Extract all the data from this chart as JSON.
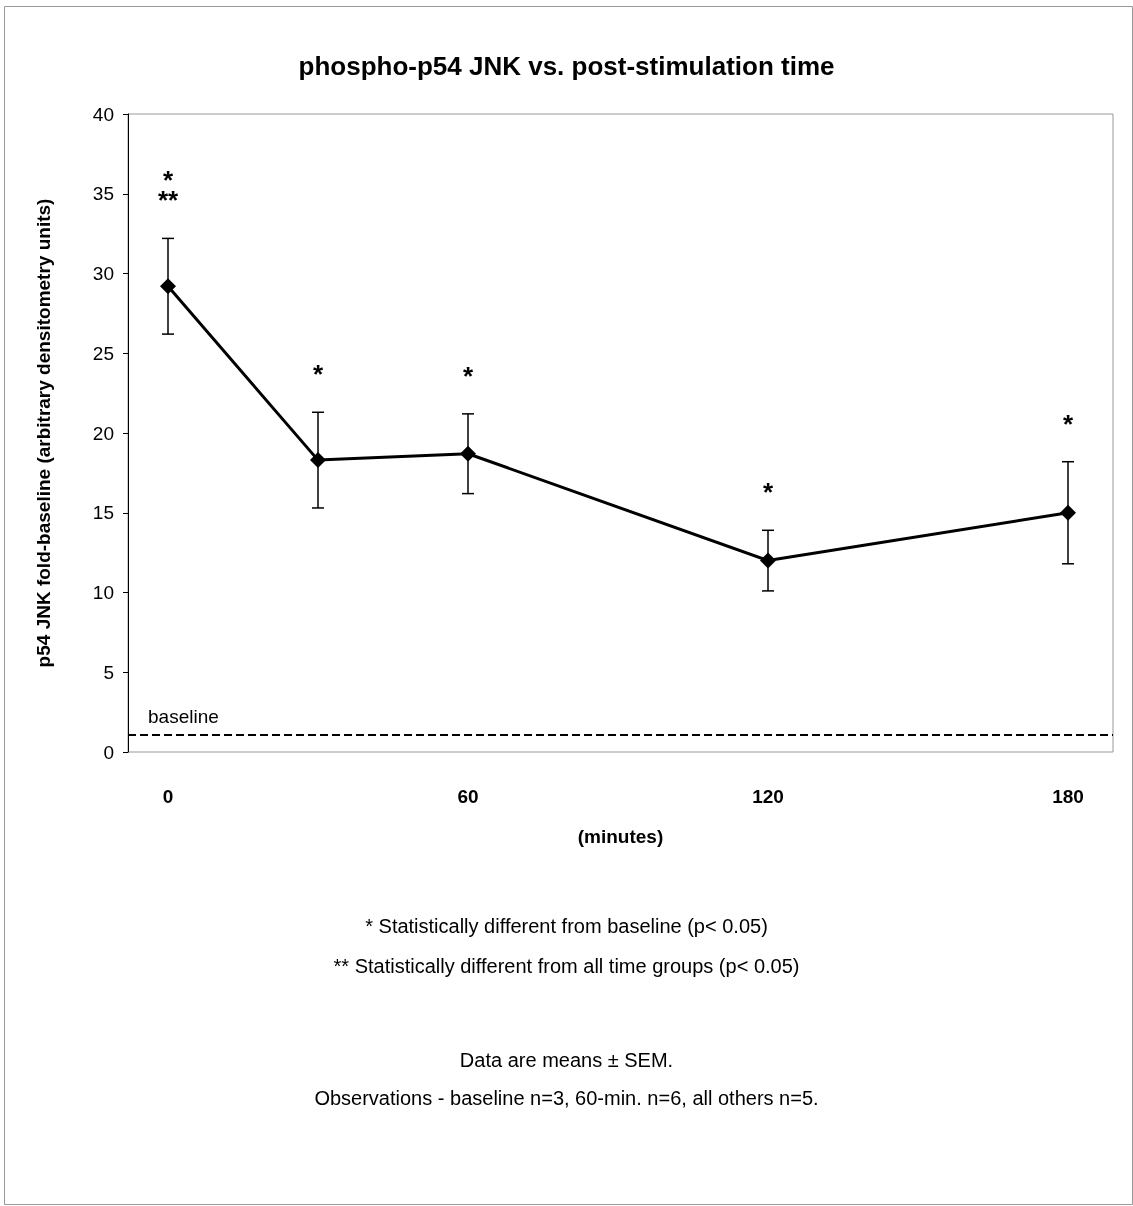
{
  "chart_data": {
    "type": "line",
    "title": "phospho-p54 JNK vs. post-stimulation time",
    "xlabel": "(minutes)",
    "ylabel": "p54 JNK fold-baseline (arbitrary densitometry units)",
    "x": [
      0,
      30,
      60,
      120,
      180
    ],
    "series": [
      {
        "color": "#000000",
        "values": [
          29.2,
          18.3,
          18.7,
          12.0,
          15.0
        ],
        "errors": [
          3.0,
          3.0,
          2.5,
          1.9,
          3.2
        ],
        "value_labels": [
          "*\n**",
          "*",
          "*",
          "*",
          "*"
        ]
      }
    ],
    "xlim": [
      -8,
      189
    ],
    "xticks": [
      0,
      60,
      120,
      180
    ],
    "ylim": [
      0,
      40
    ],
    "yticks": [
      0,
      5,
      10,
      15,
      20,
      25,
      30,
      35,
      40
    ],
    "ref_lines": [
      {
        "axis": "y",
        "value": 1.1,
        "label": "baseline",
        "color": "#000000",
        "line_style": "dashed"
      }
    ],
    "marker": "diamond",
    "line_style": "solid",
    "grid": false,
    "annotations": [
      "* Statistically different from baseline (p< 0.05)",
      "** Statistically different from all time groups (p< 0.05)",
      "Data are means ± SEM.",
      "Observations - baseline n=3, 60-min. n=6, all others n=5."
    ]
  }
}
